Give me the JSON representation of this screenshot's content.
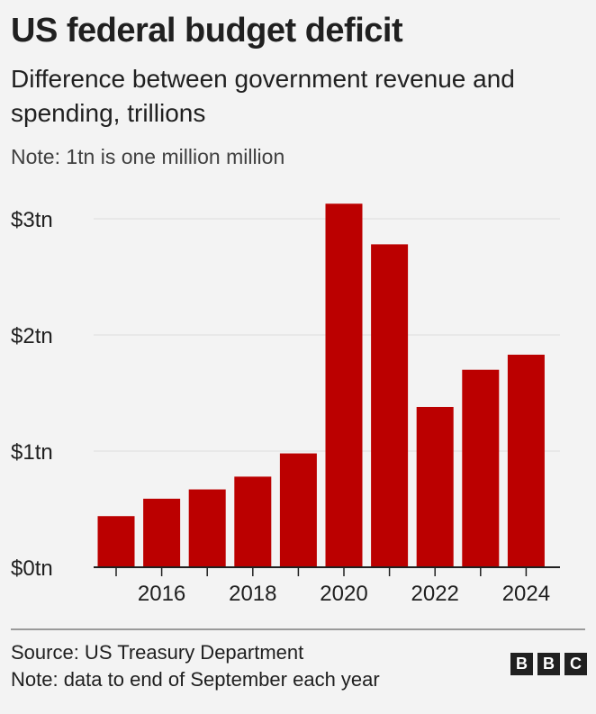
{
  "header": {
    "title": "US federal budget deficit",
    "subtitle": "Difference between government revenue and spending, trillions",
    "note": "Note: 1tn is one million million"
  },
  "footer": {
    "source": "Source: US Treasury Department",
    "note": "Note: data to end of September each year",
    "logo": [
      "B",
      "B",
      "C"
    ]
  },
  "colors": {
    "bar": "#bb0000",
    "grid": "#dedede",
    "axis": "#202020"
  },
  "chart_data": {
    "type": "bar",
    "x": [
      2015,
      2016,
      2017,
      2018,
      2019,
      2020,
      2021,
      2022,
      2023,
      2024
    ],
    "values": [
      0.44,
      0.59,
      0.67,
      0.78,
      0.98,
      3.13,
      2.78,
      1.38,
      1.7,
      1.83
    ],
    "x_tick_labels": [
      "2016",
      "2018",
      "2020",
      "2022",
      "2024"
    ],
    "y_ticks": [
      0,
      1,
      2,
      3
    ],
    "y_tick_labels": [
      "$0tn",
      "$1tn",
      "$2tn",
      "$3tn"
    ],
    "ylim": [
      0,
      3.2
    ],
    "grid": true,
    "legend": "none"
  }
}
